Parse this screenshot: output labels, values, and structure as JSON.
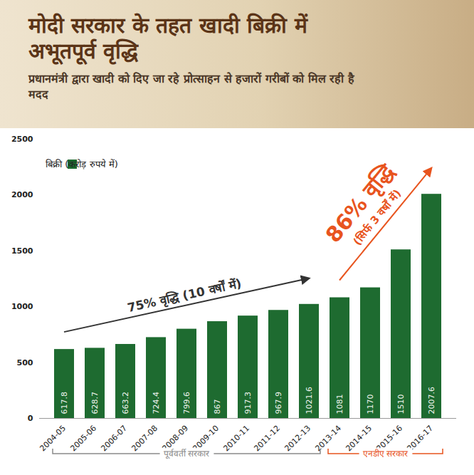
{
  "chart_data": {
    "type": "bar",
    "title": "मोदी सरकार के तहत खादी बिक्री में अभूतपूर्व वृद्धि",
    "subtitle": "प्रधानमंत्री द्वारा खादी को दिए जा रहे प्रोत्साहन से हजारों गरीबों को मिल रही है मदद",
    "categories": [
      "2004-05",
      "2005-06",
      "2006-07",
      "2007-08",
      "2008-09",
      "2009-10",
      "2010-11",
      "2011-12",
      "2012-13",
      "2013-14",
      "2014-15",
      "2015-16",
      "2016-17"
    ],
    "series": [
      {
        "name": "बिक्री (करोड़ रुपये में)",
        "color": "#1e6b30",
        "values": [
          617.8,
          628.7,
          663.2,
          724.4,
          799.6,
          867,
          917.3,
          967.9,
          1021.6,
          1081,
          1170,
          1510,
          2007.6
        ]
      }
    ],
    "ylim": [
      0,
      2500
    ],
    "yticks": [
      0,
      500,
      1000,
      1500,
      2000,
      2500
    ],
    "grid": false,
    "legend": "top-left",
    "data_labels": true,
    "annotations": [
      {
        "text": "75% वृद्धि (10 वर्षों में)",
        "from": "2004-05",
        "to": "2012-13",
        "color": "#333333"
      },
      {
        "text": "86% वृद्धि",
        "subtext": "(सिर्फ 3 वर्षों में)",
        "from": "2013-14",
        "to": "2016-17",
        "color": "#e8541e"
      }
    ],
    "groups": [
      {
        "label": "पूर्ववर्ती सरकार",
        "from": "2004-05",
        "to": "2012-13",
        "color": "#8a8a8a"
      },
      {
        "label": "एनडीए सरकार",
        "from": "2013-14",
        "to": "2016-17",
        "color": "#e8541e"
      }
    ]
  }
}
